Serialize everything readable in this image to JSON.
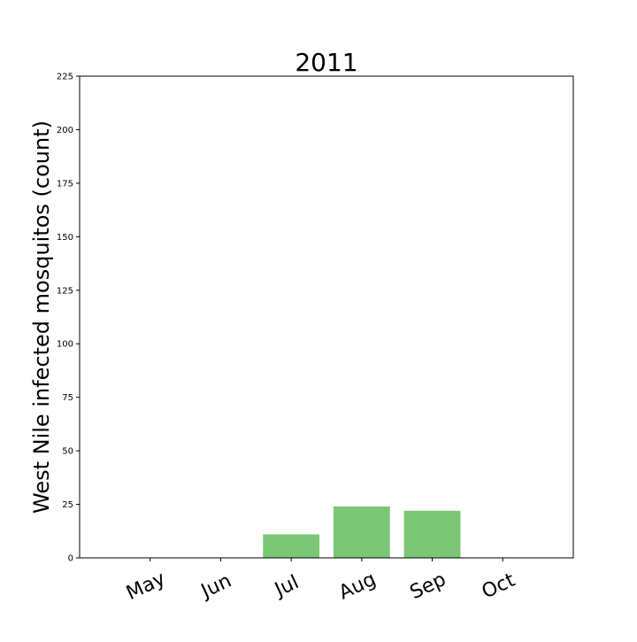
{
  "chart_data": {
    "type": "bar",
    "title": "2011",
    "xlabel": "",
    "ylabel": "West Nile infected mosquitos (count)",
    "categories": [
      "May",
      "Jun",
      "Jul",
      "Aug",
      "Sep",
      "Oct"
    ],
    "values": [
      0,
      0,
      11,
      24,
      22,
      0
    ],
    "ylim": [
      0,
      225
    ],
    "yticks": [
      0,
      25,
      50,
      75,
      100,
      125,
      150,
      175,
      200,
      225
    ],
    "grid": false,
    "legend": "none",
    "bar_color": "#7bc677"
  }
}
